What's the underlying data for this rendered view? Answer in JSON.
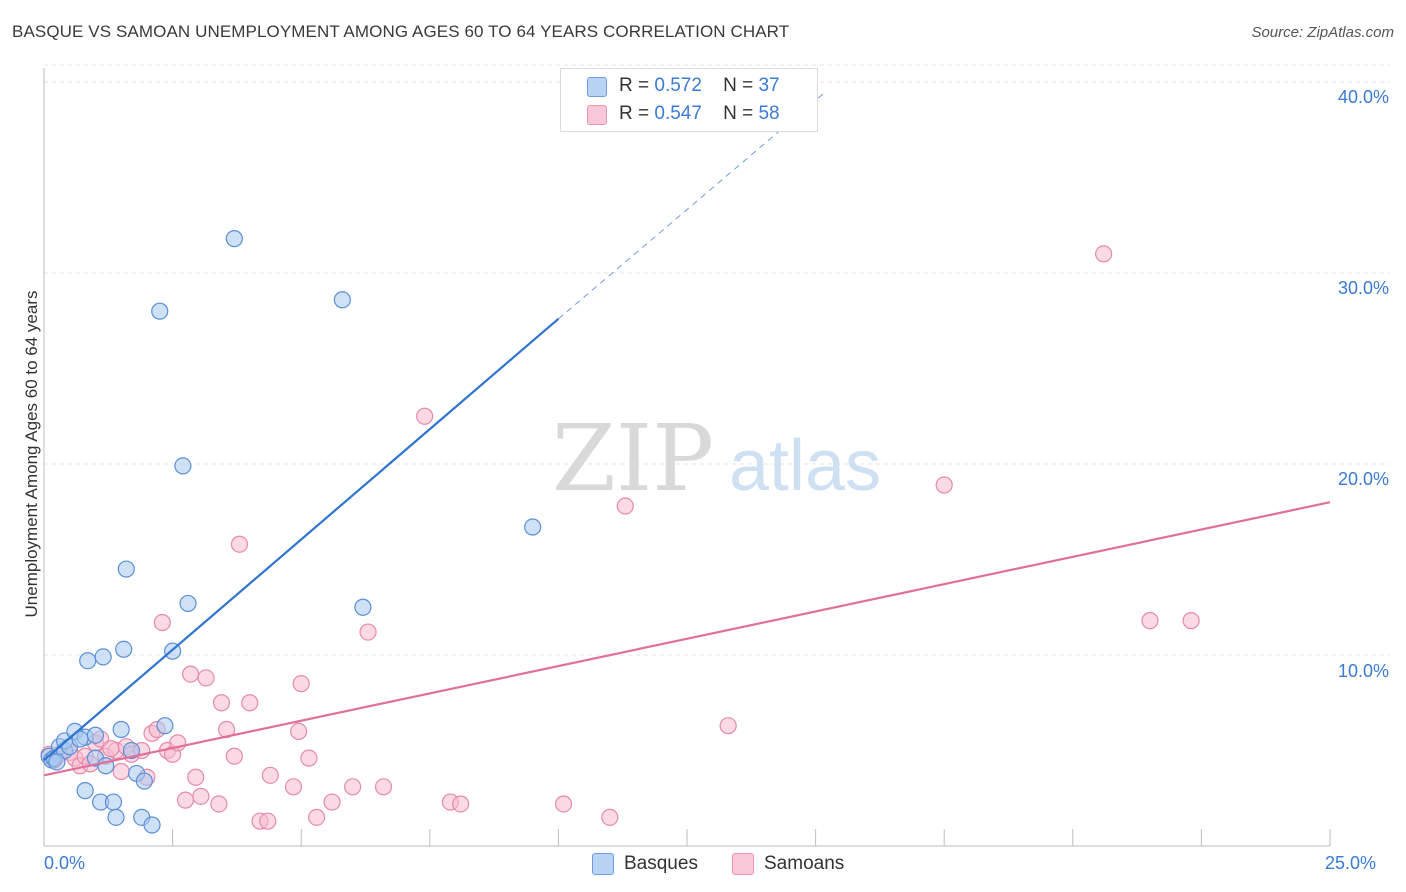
{
  "title": "BASQUE VS SAMOAN UNEMPLOYMENT AMONG AGES 60 TO 64 YEARS CORRELATION CHART",
  "source": "Source: ZipAtlas.com",
  "legend": {
    "basques": {
      "r_label": "R =",
      "r_value": "0.572",
      "n_label": "N =",
      "n_value": "37"
    },
    "samoans": {
      "r_label": "R =",
      "r_value": "0.547",
      "n_label": "N =",
      "n_value": "58"
    }
  },
  "bottom_legend": {
    "basques": "Basques",
    "samoans": "Samoans"
  },
  "colors": {
    "basque_fill": "#a8c8f0",
    "basque_stroke": "#5b8fd6",
    "basque_line": "#2f74d0",
    "samoan_fill": "#f7bcd0",
    "samoan_stroke": "#e68aa8",
    "samoan_line": "#e0709a",
    "axis_text": "#3a7bd5"
  },
  "chart_data": {
    "type": "scatter",
    "title": "BASQUE VS SAMOAN UNEMPLOYMENT AMONG AGES 60 TO 64 YEARS CORRELATION CHART",
    "xlabel": "",
    "ylabel": "Unemployment Among Ages 60 to 64 years",
    "xlim": [
      0,
      25
    ],
    "ylim": [
      0,
      42
    ],
    "x_tick_labels": [
      "0.0%",
      "25.0%"
    ],
    "y_ticks": [
      10,
      20,
      30,
      40
    ],
    "y_tick_labels": [
      "10.0%",
      "20.0%",
      "30.0%",
      "40.0%"
    ],
    "series": [
      {
        "name": "Basques",
        "points": [
          [
            0.1,
            4.7
          ],
          [
            0.15,
            4.5
          ],
          [
            0.2,
            4.6
          ],
          [
            0.3,
            5.2
          ],
          [
            0.4,
            5.0
          ],
          [
            0.4,
            5.5
          ],
          [
            0.6,
            6.0
          ],
          [
            0.8,
            5.7
          ],
          [
            0.8,
            2.9
          ],
          [
            0.85,
            9.7
          ],
          [
            1.0,
            4.6
          ],
          [
            1.1,
            2.3
          ],
          [
            1.15,
            9.9
          ],
          [
            1.2,
            4.2
          ],
          [
            1.35,
            2.3
          ],
          [
            1.4,
            1.5
          ],
          [
            1.5,
            6.1
          ],
          [
            1.55,
            10.3
          ],
          [
            1.6,
            14.5
          ],
          [
            1.7,
            5.0
          ],
          [
            1.8,
            3.8
          ],
          [
            1.9,
            1.5
          ],
          [
            1.95,
            3.4
          ],
          [
            2.1,
            1.1
          ],
          [
            2.25,
            28.0
          ],
          [
            2.35,
            6.3
          ],
          [
            2.5,
            10.2
          ],
          [
            2.7,
            19.9
          ],
          [
            2.8,
            12.7
          ],
          [
            3.7,
            31.8
          ],
          [
            5.8,
            28.6
          ],
          [
            6.2,
            12.5
          ],
          [
            9.5,
            16.7
          ],
          [
            0.5,
            5.2
          ],
          [
            0.25,
            4.4
          ],
          [
            0.7,
            5.6
          ],
          [
            1.0,
            5.8
          ]
        ],
        "trend": {
          "x": [
            0.0,
            10.0
          ],
          "y": [
            4.5,
            27.6
          ],
          "dashed_extension": {
            "x": [
              10.0,
              15.2
            ],
            "y": [
              27.6,
              39.5
            ]
          }
        }
      },
      {
        "name": "Samoans",
        "points": [
          [
            0.1,
            4.8
          ],
          [
            0.2,
            4.5
          ],
          [
            0.3,
            4.8
          ],
          [
            0.5,
            4.9
          ],
          [
            0.6,
            4.6
          ],
          [
            0.7,
            4.2
          ],
          [
            0.8,
            4.7
          ],
          [
            1.0,
            5.4
          ],
          [
            1.1,
            5.6
          ],
          [
            1.2,
            4.7
          ],
          [
            1.4,
            5.0
          ],
          [
            1.5,
            3.9
          ],
          [
            1.6,
            5.2
          ],
          [
            1.7,
            4.8
          ],
          [
            1.9,
            5.0
          ],
          [
            2.0,
            3.6
          ],
          [
            2.1,
            5.9
          ],
          [
            2.2,
            6.1
          ],
          [
            2.3,
            11.7
          ],
          [
            2.4,
            5.0
          ],
          [
            2.5,
            4.8
          ],
          [
            2.6,
            5.4
          ],
          [
            2.75,
            2.4
          ],
          [
            2.85,
            9.0
          ],
          [
            2.95,
            3.6
          ],
          [
            3.05,
            2.6
          ],
          [
            3.15,
            8.8
          ],
          [
            3.4,
            2.2
          ],
          [
            3.45,
            7.5
          ],
          [
            3.55,
            6.1
          ],
          [
            3.7,
            4.7
          ],
          [
            3.8,
            15.8
          ],
          [
            4.0,
            7.5
          ],
          [
            4.2,
            1.3
          ],
          [
            4.35,
            1.3
          ],
          [
            4.4,
            3.7
          ],
          [
            4.85,
            3.1
          ],
          [
            4.95,
            6.0
          ],
          [
            5.0,
            8.5
          ],
          [
            5.15,
            4.6
          ],
          [
            5.3,
            1.5
          ],
          [
            5.6,
            2.3
          ],
          [
            6.0,
            3.1
          ],
          [
            6.3,
            11.2
          ],
          [
            6.6,
            3.1
          ],
          [
            7.4,
            22.5
          ],
          [
            7.9,
            2.3
          ],
          [
            8.1,
            2.2
          ],
          [
            10.1,
            2.2
          ],
          [
            11.3,
            17.8
          ],
          [
            11.0,
            1.5
          ],
          [
            13.3,
            6.3
          ],
          [
            17.5,
            18.9
          ],
          [
            20.6,
            31.0
          ],
          [
            21.5,
            11.8
          ],
          [
            22.3,
            11.8
          ],
          [
            0.9,
            4.3
          ],
          [
            1.3,
            5.1
          ]
        ],
        "trend": {
          "x": [
            0.0,
            25.0
          ],
          "y": [
            3.7,
            18.0
          ]
        }
      }
    ]
  }
}
